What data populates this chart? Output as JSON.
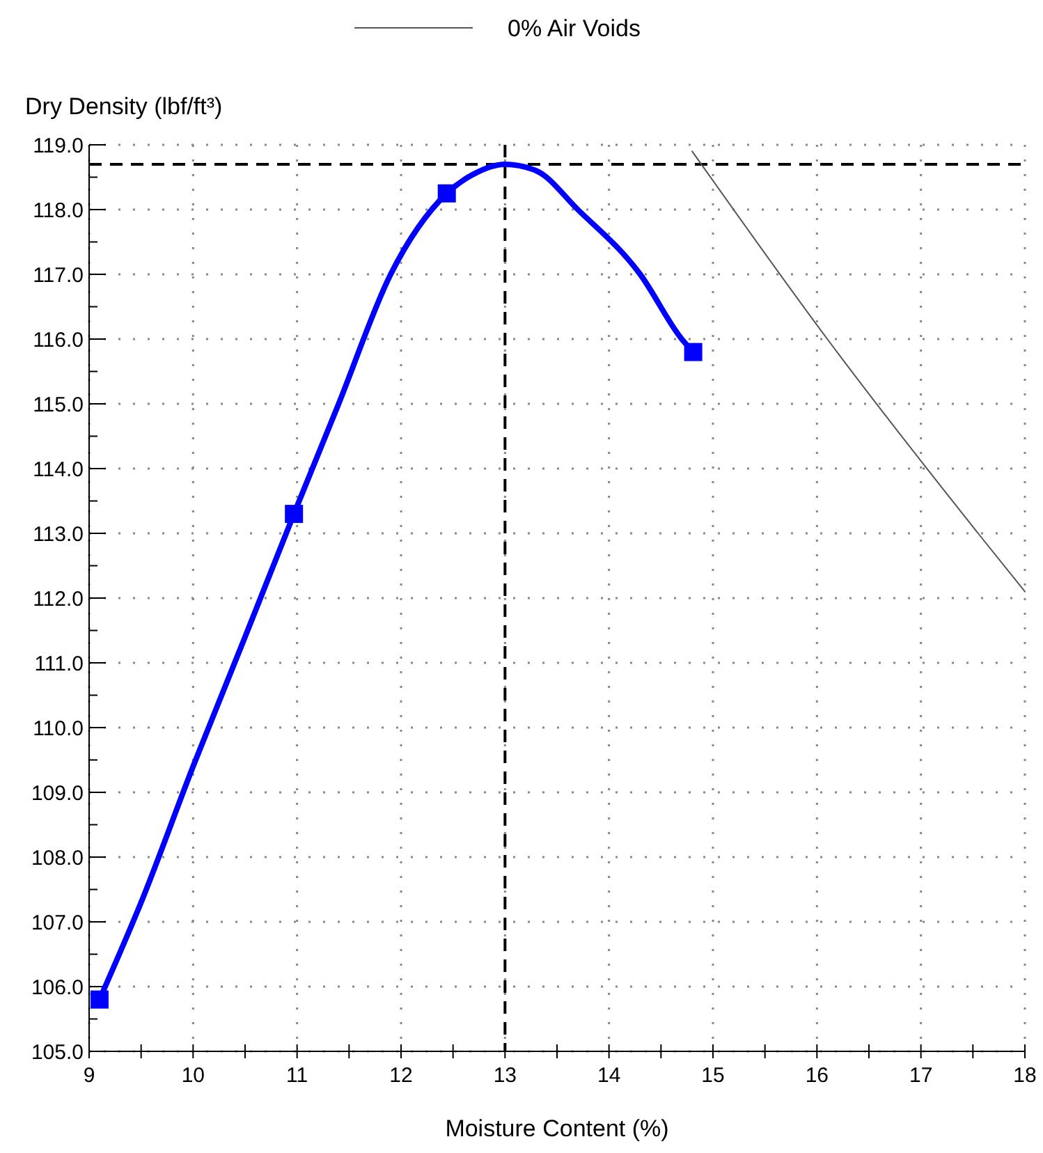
{
  "chart_data": {
    "type": "line",
    "xlabel": "Moisture Content (%)",
    "ylabel": "Dry Density (lbf/ft³)",
    "xlim": [
      9,
      18
    ],
    "ylim": [
      105,
      119
    ],
    "xticks": [
      9,
      {
        "value": 9.5,
        "label": null
      },
      10,
      {
        "value": 10.5,
        "label": null
      },
      11,
      {
        "value": 11.5,
        "label": null
      },
      12,
      {
        "value": 12.5,
        "label": null
      },
      13,
      {
        "value": 13.5,
        "label": null
      },
      14,
      {
        "value": 14.5,
        "label": null
      },
      15,
      {
        "value": 15.5,
        "label": null
      },
      16,
      {
        "value": 16.5,
        "label": null
      },
      17,
      {
        "value": 17.5,
        "label": null
      },
      18
    ],
    "yticks": [
      {
        "value": 105,
        "label": "105.0"
      },
      {
        "value": 105.5,
        "label": null
      },
      {
        "value": 106,
        "label": "106.0"
      },
      {
        "value": 106.5,
        "label": null
      },
      {
        "value": 107,
        "label": "107.0"
      },
      {
        "value": 107.5,
        "label": null
      },
      {
        "value": 108,
        "label": "108.0"
      },
      {
        "value": 108.5,
        "label": null
      },
      {
        "value": 109,
        "label": "109.0"
      },
      {
        "value": 109.5,
        "label": null
      },
      {
        "value": 110,
        "label": "110.0"
      },
      {
        "value": 110.5,
        "label": null
      },
      {
        "value": 111,
        "label": "111.0"
      },
      {
        "value": 111.5,
        "label": null
      },
      {
        "value": 112,
        "label": "112.0"
      },
      {
        "value": 112.5,
        "label": null
      },
      {
        "value": 113,
        "label": "113.0"
      },
      {
        "value": 113.5,
        "label": null
      },
      {
        "value": 114,
        "label": "114.0"
      },
      {
        "value": 114.5,
        "label": null
      },
      {
        "value": 115,
        "label": "115.0"
      },
      {
        "value": 115.5,
        "label": null
      },
      {
        "value": 116,
        "label": "116.0"
      },
      {
        "value": 116.5,
        "label": null
      },
      {
        "value": 117,
        "label": "117.0"
      },
      {
        "value": 117.5,
        "label": null
      },
      {
        "value": 118,
        "label": "118.0"
      },
      {
        "value": 118.5,
        "label": null
      },
      {
        "value": 119,
        "label": "119.0"
      }
    ],
    "grid": true,
    "legend": "top",
    "series": [
      {
        "color": "#0000ff",
        "marker": "none",
        "x": [
          9.1,
          9.5,
          10.0,
          10.5,
          10.97,
          11.4,
          11.9,
          12.44,
          12.7,
          13.0,
          13.3,
          13.7,
          14.3,
          14.7,
          14.81
        ],
        "values": [
          105.8,
          107.3,
          109.4,
          111.4,
          113.3,
          115.0,
          117.0,
          118.25,
          118.55,
          118.7,
          118.6,
          118.0,
          117.0,
          116.0,
          115.8
        ]
      },
      {
        "type": "scatter",
        "color": "#0000ff",
        "marker": "square",
        "x": [
          9.1,
          10.97,
          12.44,
          14.81
        ],
        "values": [
          105.8,
          113.3,
          118.25,
          115.8
        ]
      },
      {
        "type": "line",
        "name": "0% Air Voids",
        "color": "#555555",
        "marker": "none",
        "x": [
          14.8,
          16.1,
          17.55,
          18.0
        ],
        "values": [
          118.9,
          116.0,
          113.0,
          112.1
        ]
      }
    ],
    "ref_lines": [
      {
        "axis": "y",
        "value": 118.7,
        "color": "#000000",
        "line_style": "dashed"
      },
      {
        "axis": "x",
        "value": 13.0,
        "color": "#000000",
        "line_style": "dashed"
      }
    ]
  }
}
